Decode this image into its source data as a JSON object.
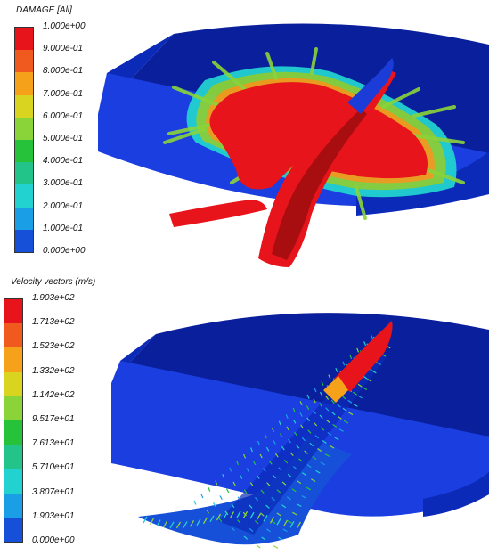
{
  "damage_panel": {
    "legend_title": "DAMAGE [All]",
    "ticks": [
      "1.000e+00",
      "9.000e-01",
      "8.000e-01",
      "7.000e-01",
      "6.000e-01",
      "5.000e-01",
      "4.000e-01",
      "3.000e-01",
      "2.000e-01",
      "1.000e-01",
      "0.000e+00"
    ],
    "band_colors": [
      "#e8141b",
      "#f05a1e",
      "#f5a21a",
      "#d8d420",
      "#8ad43a",
      "#26c23a",
      "#22c48a",
      "#22d2d0",
      "#1a9ee6",
      "#1650d8"
    ]
  },
  "velocity_panel": {
    "legend_title": "Velocity vectors (m/s)",
    "ticks": [
      "1.903e+02",
      "1.713e+02",
      "1.523e+02",
      "1.332e+02",
      "1.142e+02",
      "9.517e+01",
      "7.613e+01",
      "5.710e+01",
      "3.807e+01",
      "1.903e+01",
      "0.000e+00"
    ],
    "band_colors": [
      "#e8141b",
      "#f05a1e",
      "#f5a21a",
      "#d8d420",
      "#8ad43a",
      "#26c23a",
      "#22c48a",
      "#22d2d0",
      "#1a9ee6",
      "#1650d8"
    ]
  },
  "scene_colors": {
    "block_top": "#0a1f9c",
    "block_face": "#1a3ee0",
    "block_side": "#0c2ab8",
    "damage_red": "#e8141b",
    "shadow_red": "#a80e10",
    "projectile": "#1c3cd8"
  }
}
